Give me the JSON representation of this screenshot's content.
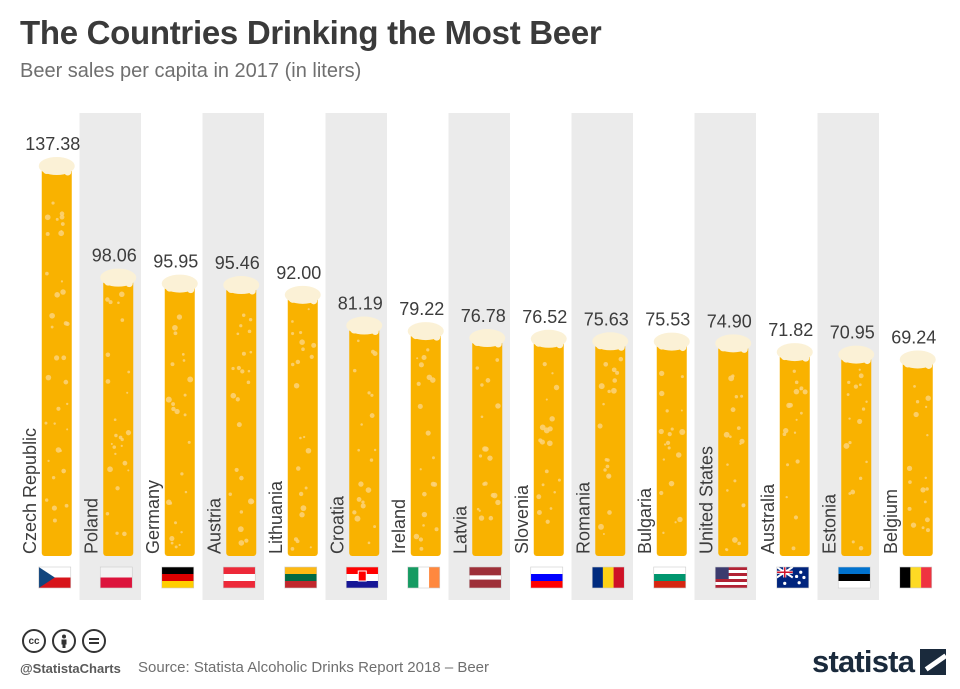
{
  "header": {
    "title": "The Countries Drinking the Most Beer",
    "subtitle": "Beer sales per capita in 2017 (in liters)"
  },
  "footer": {
    "handle": "@StatistaCharts",
    "source": "Source: Statista Alcoholic Drinks Report 2018 – Beer",
    "brand": "statista",
    "license_icons": [
      "cc-icon",
      "attribution-icon",
      "no-derivatives-icon"
    ]
  },
  "colors": {
    "beer": "#f9b200",
    "beer_bubble": "#fcd27a",
    "foam": "#fbf1d6",
    "stripe": "#ebebeb",
    "title": "#3a3a3a"
  },
  "chart_data": {
    "type": "bar",
    "title": "The Countries Drinking the Most Beer",
    "subtitle": "Beer sales per capita in 2017 (in liters)",
    "categories": [
      "Czech Republic",
      "Poland",
      "Germany",
      "Austria",
      "Lithuania",
      "Croatia",
      "Ireland",
      "Latvia",
      "Slovenia",
      "Romania",
      "Bulgaria",
      "United States",
      "Australia",
      "Estonia",
      "Belgium"
    ],
    "value_labels": [
      "137.38",
      "98.06",
      "95.95",
      "95.46",
      "92.00",
      "81.19",
      "79.22",
      "76.78",
      "76.52",
      "75.63",
      "75.53",
      "74.90",
      "71.82",
      "70.95",
      "69.24"
    ],
    "values": [
      137.38,
      98.06,
      95.95,
      95.46,
      92.0,
      81.19,
      79.22,
      76.78,
      76.52,
      75.63,
      75.53,
      74.9,
      71.82,
      70.95,
      69.24
    ],
    "flags": [
      "flag-czech-republic-icon",
      "flag-poland-icon",
      "flag-germany-icon",
      "flag-austria-icon",
      "flag-lithuania-icon",
      "flag-croatia-icon",
      "flag-ireland-icon",
      "flag-latvia-icon",
      "flag-slovenia-icon",
      "flag-romania-icon",
      "flag-bulgaria-icon",
      "flag-united-states-icon",
      "flag-australia-icon",
      "flag-estonia-icon",
      "flag-belgium-icon"
    ],
    "ylim": [
      0,
      137.38
    ],
    "grid": false,
    "legend": "none",
    "orientation": "vertical"
  }
}
